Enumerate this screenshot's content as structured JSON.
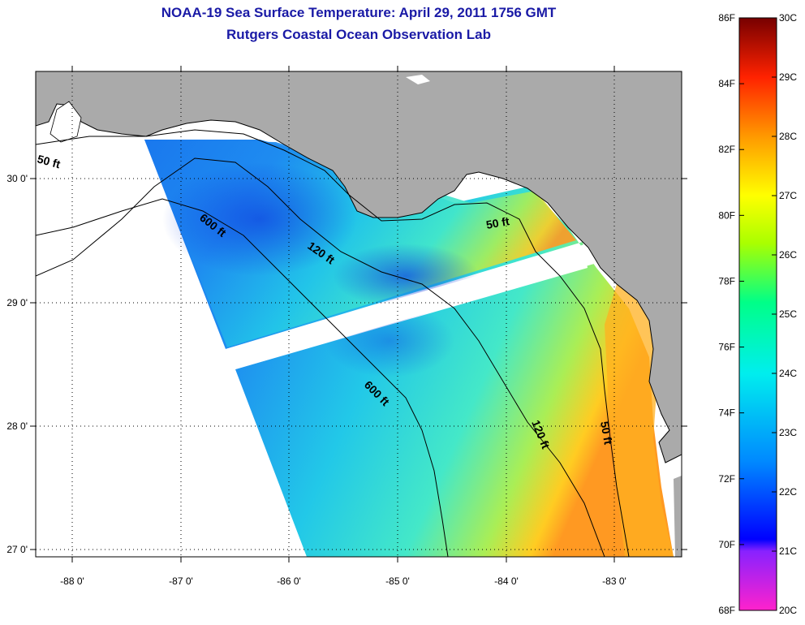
{
  "title": {
    "line1": "NOAA-19 Sea Surface Temperature:  April 29, 2011 1756 GMT",
    "line2": "Rutgers Coastal Ocean Observation Lab"
  },
  "axes": {
    "longitude_labels": [
      "-88 0'",
      "-87 0'",
      "-86 0'",
      "-85 0'",
      "-84 0'",
      "-83 0'"
    ],
    "latitude_labels": [
      "30 0'",
      "29 0'",
      "28 0'",
      "27 0'"
    ]
  },
  "contours": {
    "labels": [
      "50 ft",
      "600 ft",
      "120 ft",
      "50 ft",
      "600 ft",
      "120 ft",
      "50 ft"
    ]
  },
  "colorbar": {
    "fahrenheit": [
      "86F",
      "84F",
      "82F",
      "80F",
      "78F",
      "76F",
      "74F",
      "72F",
      "70F",
      "68F"
    ],
    "celsius": [
      "30C",
      "29C",
      "28C",
      "27C",
      "26C",
      "25C",
      "24C",
      "23C",
      "22C",
      "21C",
      "20C"
    ],
    "colors": [
      "#ff22cc",
      "#8822ff",
      "#0000ff",
      "#0088ff",
      "#00eeee",
      "#00ff88",
      "#aaff00",
      "#ffff00",
      "#ff9900",
      "#ff2200",
      "#770000"
    ]
  },
  "colors": {
    "land": "#aaaaaa",
    "ocean_cool": "#1a6eea",
    "ocean_warm": "#ff9922",
    "title": "#1a1aa6"
  }
}
